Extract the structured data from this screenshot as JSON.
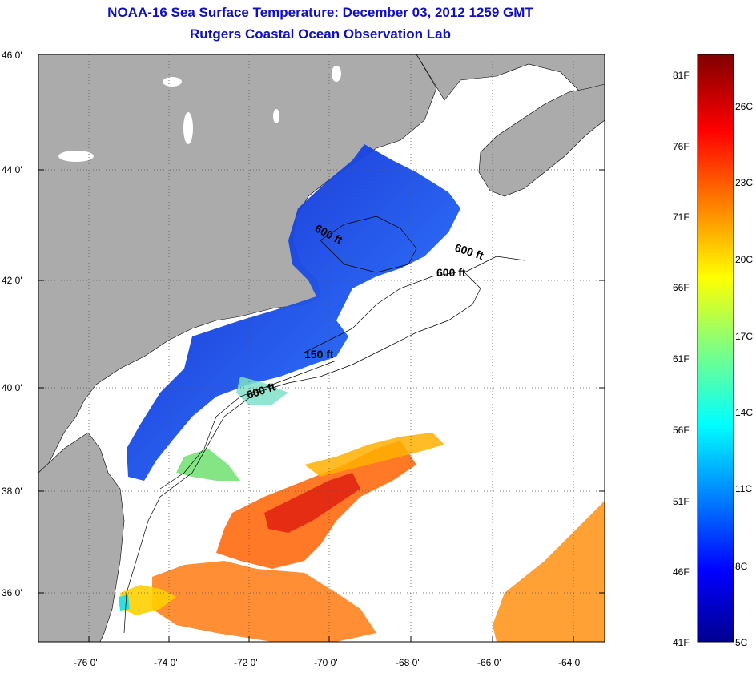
{
  "title": "NOAA-16 Sea Surface Temperature:  December 03, 2012 1259 GMT",
  "subtitle": "Rutgers Coastal Ocean Observation Lab",
  "map": {
    "lat_labels": [
      "46 0'",
      "44 0'",
      "42 0'",
      "40 0'",
      "38 0'",
      "36 0'"
    ],
    "lon_labels": [
      "-76 0'",
      "-74 0'",
      "-72 0'",
      "-70 0'",
      "-68 0'",
      "-66 0'",
      "-64 0'"
    ],
    "lat_range": [
      35,
      46
    ],
    "lon_range": [
      -77,
      -63
    ],
    "contour_labels": [
      "600 ft",
      "600 ft",
      "600 ft",
      "150 ft",
      "600 ft"
    ],
    "land_color": "#ababab",
    "ocean_color": "#ffffff",
    "grid": "dotted"
  },
  "colorbar": {
    "range_f": [
      41,
      83
    ],
    "range_c": [
      5,
      28
    ],
    "f_labels": [
      "81F",
      "76F",
      "71F",
      "66F",
      "61F",
      "56F",
      "51F",
      "46F",
      "41F"
    ],
    "c_labels": [
      "26C",
      "23C",
      "20C",
      "17C",
      "14C",
      "11C",
      "8C",
      "5C"
    ],
    "colormap": "jet"
  }
}
